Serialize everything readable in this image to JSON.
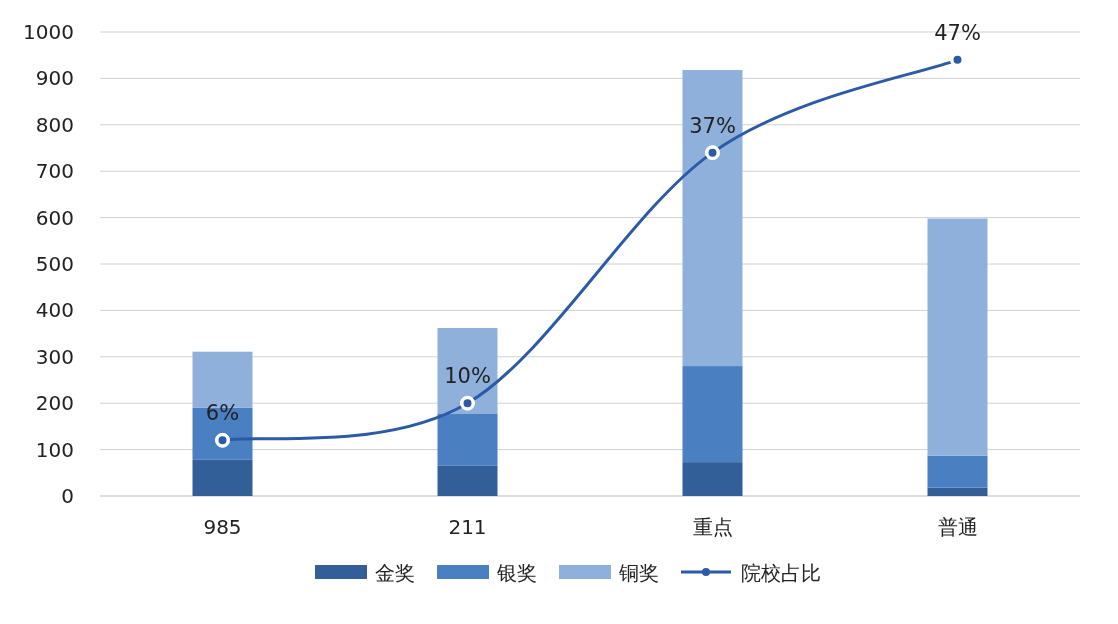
{
  "chart_data": {
    "type": "bar",
    "stacked": true,
    "categories": [
      "985",
      "211",
      "重点",
      "普通"
    ],
    "series": [
      {
        "name": "金奖",
        "color": "#335f99",
        "values": [
          78,
          65,
          73,
          18
        ]
      },
      {
        "name": "银奖",
        "color": "#4a7fc1",
        "values": [
          112,
          113,
          207,
          69
        ]
      },
      {
        "name": "铜奖",
        "color": "#8fb0db",
        "values": [
          121,
          184,
          638,
          511
        ]
      },
      {
        "name": "院校占比",
        "type": "line",
        "axis": "y2",
        "color": "#2c5ba6",
        "marker": "circle",
        "values": [
          6,
          10,
          37,
          47
        ],
        "value_labels": [
          "6%",
          "10%",
          "37%",
          "47%"
        ]
      }
    ],
    "ylim": [
      0,
      1000
    ],
    "yticks": [
      0,
      100,
      200,
      300,
      400,
      500,
      600,
      700,
      800,
      900,
      1000
    ],
    "y2lim": [
      0,
      50
    ],
    "tick_labels": "xy",
    "grid": "y",
    "legend": "bottom"
  }
}
